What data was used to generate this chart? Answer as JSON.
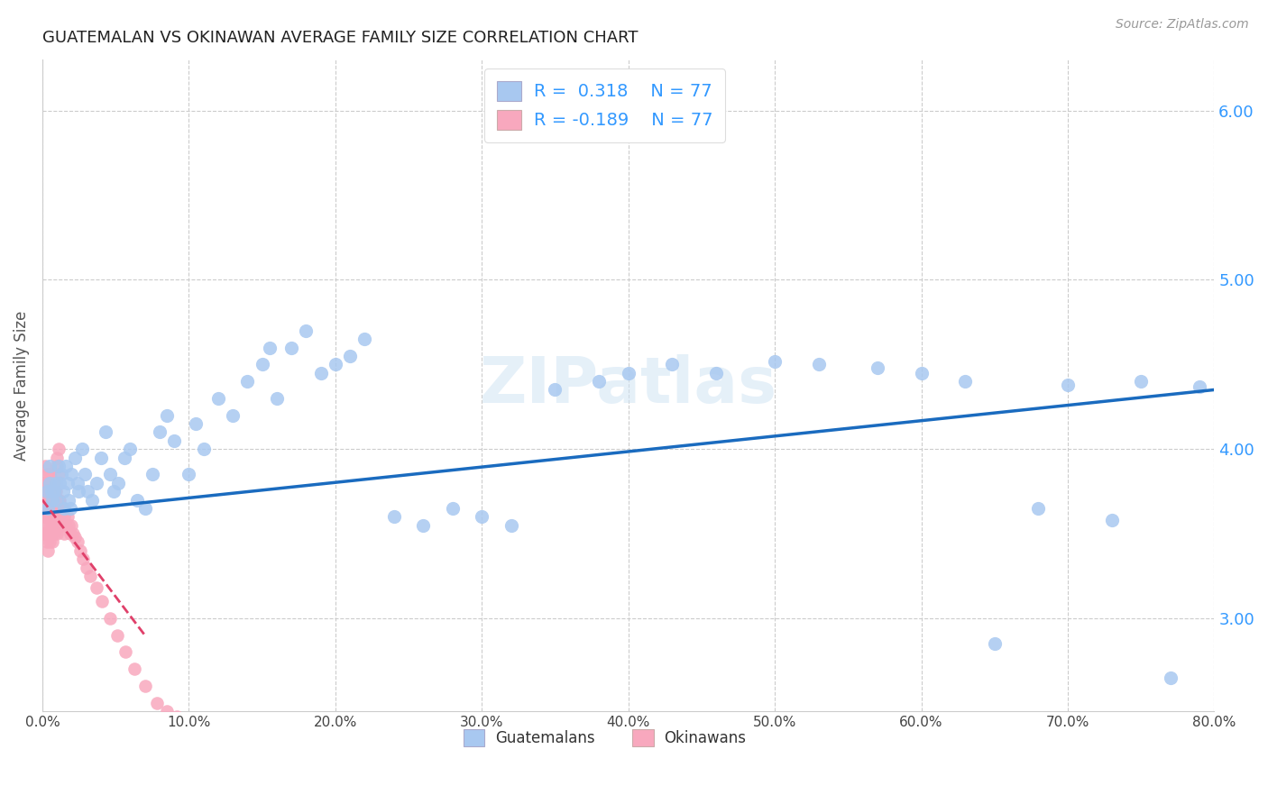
{
  "title": "GUATEMALAN VS OKINAWAN AVERAGE FAMILY SIZE CORRELATION CHART",
  "source": "Source: ZipAtlas.com",
  "ylabel": "Average Family Size",
  "xlim": [
    0.0,
    0.8
  ],
  "ylim": [
    2.45,
    6.3
  ],
  "yticks_right": [
    3.0,
    4.0,
    5.0,
    6.0
  ],
  "xtick_labels": [
    "0.0%",
    "",
    "10.0%",
    "",
    "20.0%",
    "",
    "30.0%",
    "",
    "40.0%",
    "",
    "50.0%",
    "",
    "60.0%",
    "",
    "70.0%",
    "",
    "80.0%"
  ],
  "xtick_values": [
    0.0,
    0.05,
    0.1,
    0.15,
    0.2,
    0.25,
    0.3,
    0.35,
    0.4,
    0.45,
    0.5,
    0.55,
    0.6,
    0.65,
    0.7,
    0.75,
    0.8
  ],
  "guatemalan_color": "#a8c8f0",
  "okinawan_color": "#f8a8be",
  "guatemalan_line_color": "#1a6bbf",
  "okinawan_line_color": "#e0406a",
  "legend_label_1": "Guatemalans",
  "legend_label_2": "Okinawans",
  "R_guatemalan": "0.318",
  "R_okinawan": "-0.189",
  "N": "77",
  "guatemalan_trend_x0": 0.0,
  "guatemalan_trend_y0": 3.62,
  "guatemalan_trend_x1": 0.8,
  "guatemalan_trend_y1": 4.35,
  "okinawan_trend_x0": 0.0,
  "okinawan_trend_y0": 3.7,
  "okinawan_trend_x1": 0.07,
  "okinawan_trend_y1": 2.9,
  "guatemalan_x": [
    0.003,
    0.004,
    0.005,
    0.005,
    0.006,
    0.007,
    0.008,
    0.009,
    0.01,
    0.011,
    0.012,
    0.013,
    0.014,
    0.015,
    0.016,
    0.017,
    0.018,
    0.019,
    0.02,
    0.022,
    0.024,
    0.025,
    0.027,
    0.029,
    0.031,
    0.034,
    0.037,
    0.04,
    0.043,
    0.046,
    0.049,
    0.052,
    0.056,
    0.06,
    0.065,
    0.07,
    0.075,
    0.08,
    0.085,
    0.09,
    0.1,
    0.105,
    0.11,
    0.12,
    0.13,
    0.14,
    0.15,
    0.155,
    0.16,
    0.17,
    0.18,
    0.19,
    0.2,
    0.21,
    0.22,
    0.24,
    0.26,
    0.28,
    0.3,
    0.32,
    0.35,
    0.38,
    0.4,
    0.43,
    0.46,
    0.5,
    0.53,
    0.57,
    0.6,
    0.63,
    0.65,
    0.68,
    0.7,
    0.73,
    0.75,
    0.77,
    0.79
  ],
  "guatemalan_y": [
    3.75,
    3.65,
    3.8,
    3.9,
    3.75,
    3.7,
    3.75,
    3.8,
    3.7,
    3.9,
    3.8,
    3.85,
    3.75,
    3.65,
    3.9,
    3.8,
    3.7,
    3.65,
    3.85,
    3.95,
    3.8,
    3.75,
    4.0,
    3.85,
    3.75,
    3.7,
    3.8,
    3.95,
    4.1,
    3.85,
    3.75,
    3.8,
    3.95,
    4.0,
    3.7,
    3.65,
    3.85,
    4.1,
    4.2,
    4.05,
    3.85,
    4.15,
    4.0,
    4.3,
    4.2,
    4.4,
    4.5,
    4.6,
    4.3,
    4.6,
    4.7,
    4.45,
    4.5,
    4.55,
    4.65,
    3.6,
    3.55,
    3.65,
    3.6,
    3.55,
    4.35,
    4.4,
    4.45,
    4.5,
    4.45,
    4.52,
    4.5,
    4.48,
    4.45,
    4.4,
    2.85,
    3.65,
    4.38,
    3.58,
    4.4,
    2.65,
    4.37
  ],
  "okinawan_x": [
    0.001,
    0.001,
    0.001,
    0.001,
    0.002,
    0.002,
    0.002,
    0.002,
    0.002,
    0.003,
    0.003,
    0.003,
    0.003,
    0.003,
    0.004,
    0.004,
    0.004,
    0.004,
    0.004,
    0.005,
    0.005,
    0.005,
    0.005,
    0.005,
    0.006,
    0.006,
    0.006,
    0.006,
    0.007,
    0.007,
    0.007,
    0.007,
    0.008,
    0.008,
    0.008,
    0.008,
    0.009,
    0.009,
    0.009,
    0.01,
    0.01,
    0.01,
    0.011,
    0.011,
    0.012,
    0.012,
    0.013,
    0.013,
    0.014,
    0.015,
    0.015,
    0.016,
    0.017,
    0.018,
    0.019,
    0.02,
    0.021,
    0.022,
    0.024,
    0.026,
    0.028,
    0.03,
    0.033,
    0.037,
    0.041,
    0.046,
    0.051,
    0.057,
    0.063,
    0.07,
    0.078,
    0.085,
    0.092,
    0.01,
    0.01,
    0.011,
    0.011
  ],
  "okinawan_y": [
    3.8,
    3.7,
    3.6,
    3.5,
    3.9,
    3.8,
    3.7,
    3.6,
    3.5,
    3.85,
    3.75,
    3.65,
    3.55,
    3.45,
    3.8,
    3.7,
    3.6,
    3.5,
    3.4,
    3.85,
    3.75,
    3.65,
    3.55,
    3.45,
    3.8,
    3.7,
    3.6,
    3.5,
    3.75,
    3.65,
    3.55,
    3.45,
    3.8,
    3.7,
    3.6,
    3.5,
    3.75,
    3.65,
    3.55,
    3.7,
    3.6,
    3.5,
    3.7,
    3.6,
    3.7,
    3.6,
    3.65,
    3.55,
    3.65,
    3.6,
    3.5,
    3.55,
    3.6,
    3.55,
    3.5,
    3.55,
    3.5,
    3.48,
    3.45,
    3.4,
    3.35,
    3.3,
    3.25,
    3.18,
    3.1,
    3.0,
    2.9,
    2.8,
    2.7,
    2.6,
    2.5,
    2.45,
    2.42,
    3.9,
    3.95,
    4.0,
    3.85
  ]
}
